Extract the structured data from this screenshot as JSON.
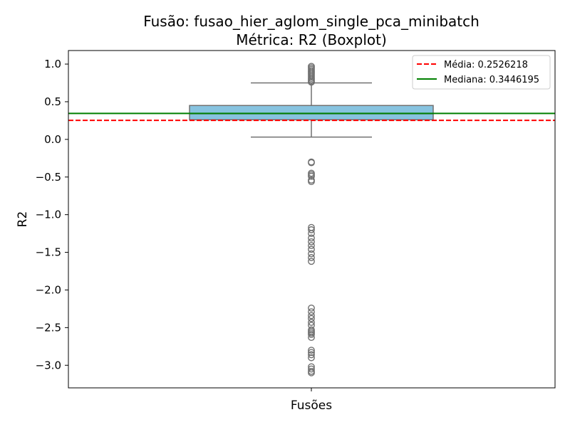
{
  "chart_data": {
    "type": "box",
    "title": "Fusão: fusao_hier_aglom_single_pca_minibatch",
    "subtitle": "Métrica: R2 (Boxplot)",
    "xlabel": "Fusões",
    "ylabel": "R2",
    "ylim": [
      -3.3,
      1.18
    ],
    "yticks": [
      {
        "value": 1.0,
        "label": "1.0"
      },
      {
        "value": 0.5,
        "label": "0.5"
      },
      {
        "value": 0.0,
        "label": "0.0"
      },
      {
        "value": -0.5,
        "label": "−0.5"
      },
      {
        "value": -1.0,
        "label": "−1.0"
      },
      {
        "value": -1.5,
        "label": "−1.5"
      },
      {
        "value": -2.0,
        "label": "−2.0"
      },
      {
        "value": -2.5,
        "label": "−2.5"
      },
      {
        "value": -3.0,
        "label": "−3.0"
      }
    ],
    "grid": false,
    "legend_position": "top-right",
    "box": {
      "whisker_low": 0.03,
      "q1": 0.26,
      "median": 0.34,
      "q3": 0.45,
      "whisker_high": 0.75,
      "fill_color": "#87c3e0",
      "edge_color": "#707070",
      "outliers": [
        0.97,
        0.95,
        0.93,
        0.91,
        0.89,
        0.87,
        0.85,
        0.83,
        0.81,
        0.79,
        0.77,
        0.76,
        -0.3,
        -0.31,
        -0.45,
        -0.47,
        -0.49,
        -0.54,
        -0.56,
        -1.17,
        -1.2,
        -1.25,
        -1.31,
        -1.36,
        -1.41,
        -1.46,
        -1.52,
        -1.57,
        -1.62,
        -2.24,
        -2.29,
        -2.34,
        -2.38,
        -2.43,
        -2.47,
        -2.53,
        -2.55,
        -2.57,
        -2.59,
        -2.63,
        -2.8,
        -2.83,
        -2.86,
        -2.9,
        -3.02,
        -3.05,
        -3.08,
        -3.1
      ]
    },
    "reference_lines": [
      {
        "name": "Média: 0.2526218",
        "value": 0.2526218,
        "color": "#ff0000",
        "style": "dashed"
      },
      {
        "name": "Mediana: 0.3446195",
        "value": 0.3446195,
        "color": "#008000",
        "style": "solid"
      }
    ]
  }
}
